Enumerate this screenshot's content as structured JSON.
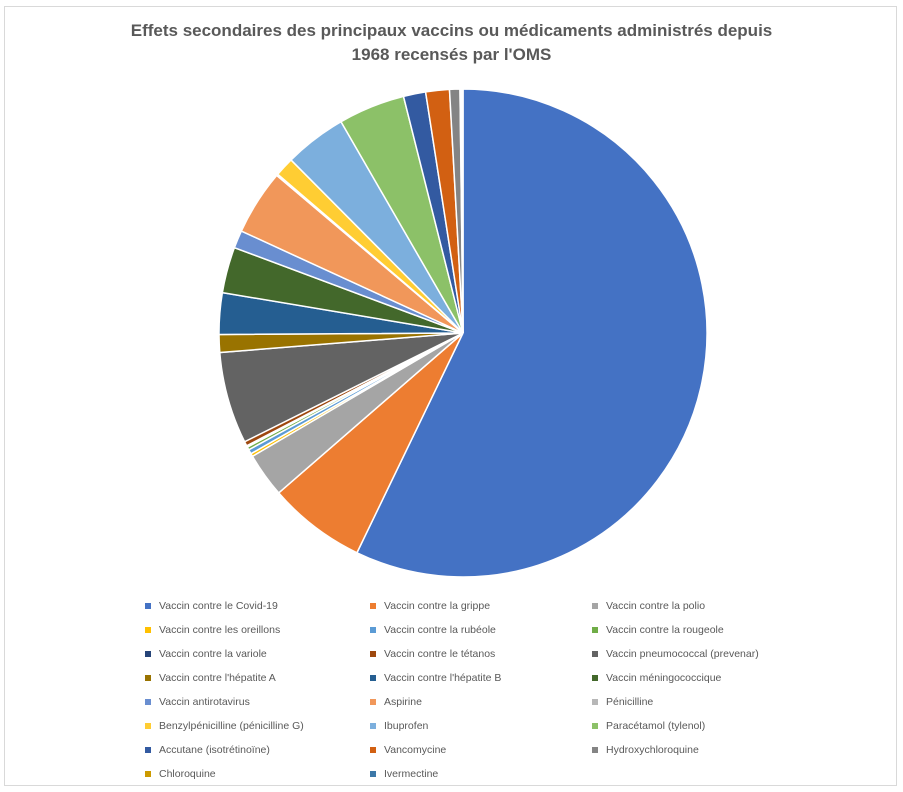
{
  "chart_data": {
    "type": "pie",
    "title_lines": [
      "Effets secondaires des principaux vaccins ou médicaments administrés depuis",
      "1968 recensés par l'OMS"
    ],
    "categories": [
      "Vaccin contre le Covid-19",
      "Vaccin contre la grippe",
      "Vaccin contre la polio",
      "Vaccin contre les oreillons",
      "Vaccin contre la rubéole",
      "Vaccin contre la rougeole",
      "Vaccin contre la variole",
      "Vaccin contre le tétanos",
      "Vaccin pneumococcal (prevenar)",
      "Vaccin contre l'hépatite A",
      "Vaccin contre l'hépatite B",
      "Vaccin méningococcique",
      "Vaccin antirotavirus",
      "Aspirine",
      "Pénicilline",
      "Benzylpénicilline (pénicilline G)",
      "Ibuprofen",
      "Paracétamol (tylenol)",
      "Accutane (isotrétinoïne)",
      "Vancomycine",
      "Hydroxychloroquine",
      "Chloroquine",
      "Ivermectine"
    ],
    "values": [
      58.3,
      6.6,
      3.0,
      0.2,
      0.3,
      0.2,
      0.1,
      0.3,
      6.2,
      1.2,
      2.8,
      3.1,
      1.2,
      4.4,
      0.1,
      1.3,
      4.2,
      4.5,
      1.5,
      1.6,
      0.7,
      0.1,
      0.1
    ],
    "colors": [
      "#4472c4",
      "#ed7d31",
      "#a5a5a5",
      "#ffc000",
      "#5b9bd5",
      "#70ad47",
      "#264478",
      "#9e480e",
      "#636363",
      "#997300",
      "#255e91",
      "#43682b",
      "#698ed0",
      "#f1975a",
      "#b7b7b7",
      "#ffcd33",
      "#7cafdd",
      "#8cc168",
      "#335aa1",
      "#d26012",
      "#848484",
      "#cc9a00",
      "#3c78a8"
    ],
    "legend_position": "bottom"
  }
}
